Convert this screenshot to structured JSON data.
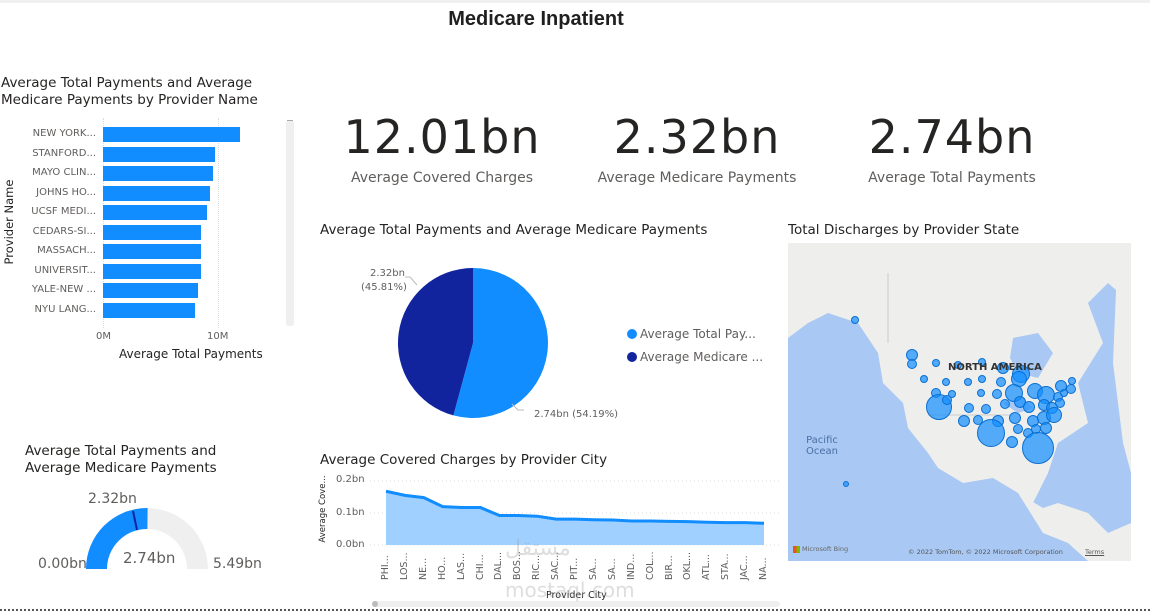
{
  "page": {
    "title": "Medicare Inpatient"
  },
  "cards": [
    {
      "value": "12.01bn",
      "label": "Average Covered Charges"
    },
    {
      "value": "2.32bn",
      "label": "Average Medicare Payments"
    },
    {
      "value": "2.74bn",
      "label": "Average Total Payments"
    }
  ],
  "bar_chart": {
    "title_line1": "Average Total Payments and Average",
    "title_line2": "Medicare Payments by Provider Name",
    "y_axis_title": "Provider Name",
    "x_axis_title": "Average Total Payments",
    "x_ticks": [
      "0M",
      "10M"
    ]
  },
  "pie_chart": {
    "title": "Average Total Payments and Average Medicare Payments",
    "label_medicare_value": "2.32bn",
    "label_medicare_pct": "(45.81%)",
    "label_total": "2.74bn (54.19%)",
    "legend": [
      {
        "label": "Average Total Pay...",
        "color": "#118dff"
      },
      {
        "label": "Average Medicare ...",
        "color": "#12239e"
      }
    ]
  },
  "gauge": {
    "title_line1": "Average Total Payments and",
    "title_line2": "Average Medicare Payments",
    "min": "0.00bn",
    "max": "5.49bn",
    "value": "2.74bn",
    "target": "2.32bn"
  },
  "area_chart": {
    "title": "Average Covered Charges by Provider City",
    "y_axis_title": "Average Cove...",
    "x_axis_title": "Provider City",
    "y_ticks": [
      "0.2bn",
      "0.1bn",
      "0.0bn"
    ]
  },
  "map": {
    "title": "Total Discharges by Provider State",
    "region_label": "NORTH AMERICA",
    "ocean_label_line1": "Pacific",
    "ocean_label_line2": "Ocean",
    "attribution": "© 2022 TomTom, © 2022 Microsoft Corporation",
    "terms": "Terms",
    "bing": "Microsoft Bing"
  },
  "watermark": {
    "line1": "مستقل",
    "line2": "mostaql.com"
  },
  "colors": {
    "primary": "#118dff",
    "secondary": "#12239e",
    "area_fill": "#9fd0ff",
    "gauge_bg": "#efefef",
    "map_water": "#a9c8f3",
    "map_land": "#eeeeec"
  },
  "chart_data": [
    {
      "type": "bar",
      "title": "Average Total Payments and Average Medicare Payments by Provider Name",
      "orientation": "horizontal",
      "categories": [
        "NEW YORK...",
        "STANFORD...",
        "MAYO CLIN...",
        "JOHNS HO...",
        "UCSF MEDI...",
        "CEDARS-SI...",
        "MASSACH...",
        "UNIVERSIT...",
        "YALE-NEW ...",
        "NYU LANG..."
      ],
      "values": [
        11.9,
        9.7,
        9.6,
        9.3,
        9.0,
        8.5,
        8.5,
        8.5,
        8.3,
        8.0
      ],
      "units": "M",
      "xlabel": "Average Total Payments",
      "ylabel": "Provider Name",
      "xlim": [
        0,
        12
      ],
      "x_ticks": [
        "0M",
        "10M"
      ]
    },
    {
      "type": "pie",
      "title": "Average Total Payments and Average Medicare Payments",
      "categories": [
        "Average Total Payments",
        "Average Medicare Payments"
      ],
      "values": [
        2.74,
        2.32
      ],
      "percentages": [
        54.19,
        45.81
      ],
      "units": "bn",
      "legend_position": "right"
    },
    {
      "type": "gauge",
      "title": "Average Total Payments and Average Medicare Payments",
      "value": 2.74,
      "target": 2.32,
      "min": 0.0,
      "max": 5.49,
      "units": "bn"
    },
    {
      "type": "area",
      "title": "Average Covered Charges by Provider City",
      "categories": [
        "PHI...",
        "LOS...",
        "NE...",
        "HO...",
        "LAS...",
        "CHI...",
        "DAL...",
        "BOS...",
        "RIC...",
        "SAC...",
        "PIT...",
        "SA...",
        "SA...",
        "IND...",
        "COL...",
        "BIR...",
        "OKL...",
        "ATL...",
        "STA...",
        "JAC...",
        "NA..."
      ],
      "values": [
        0.168,
        0.155,
        0.148,
        0.12,
        0.117,
        0.117,
        0.092,
        0.092,
        0.09,
        0.081,
        0.081,
        0.079,
        0.078,
        0.075,
        0.075,
        0.074,
        0.073,
        0.071,
        0.07,
        0.07,
        0.068
      ],
      "units": "bn",
      "xlabel": "Provider City",
      "ylabel": "Average Covered Charges",
      "ylim": [
        0,
        0.2
      ],
      "y_ticks": [
        "0.0bn",
        "0.1bn",
        "0.2bn"
      ],
      "grid": true
    },
    {
      "type": "map",
      "title": "Total Discharges by Provider State",
      "note": "Bubble map of US states; largest bubbles in CA, TX, FL, NY, PA region"
    }
  ]
}
